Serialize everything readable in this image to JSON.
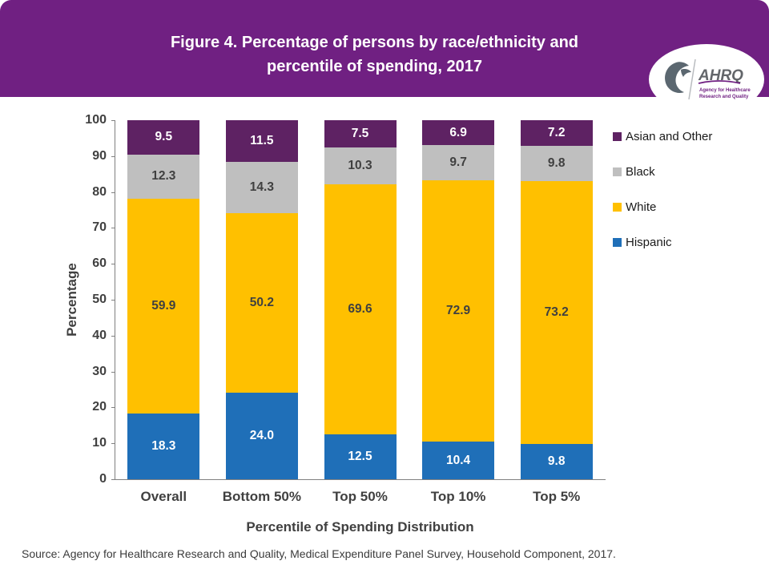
{
  "header": {
    "title_line1": "Figure 4. Percentage of persons by race/ethnicity and",
    "title_line2": "percentile of spending, 2017"
  },
  "logo": {
    "acronym": "AHRQ",
    "tagline_line1": "Agency for Healthcare",
    "tagline_line2": "Research and Quality"
  },
  "chart_data": {
    "type": "bar",
    "stacked": true,
    "title": "Figure 4. Percentage of persons by race/ethnicity and percentile of spending, 2017",
    "categories": [
      "Overall",
      "Bottom 50%",
      "Top 50%",
      "Top 10%",
      "Top 5%"
    ],
    "series": [
      {
        "name": "Hispanic",
        "color": "#1F6FB8",
        "label_color": "#FFFFFF",
        "values": [
          18.3,
          24.0,
          12.5,
          10.4,
          9.8
        ]
      },
      {
        "name": "White",
        "color": "#FFC000",
        "label_color": "#404040",
        "values": [
          59.9,
          50.2,
          69.6,
          72.9,
          73.2
        ]
      },
      {
        "name": "Black",
        "color": "#BFBFBF",
        "label_color": "#404040",
        "values": [
          12.3,
          14.3,
          10.3,
          9.7,
          9.8
        ]
      },
      {
        "name": "Asian and Other",
        "color": "#5E2263",
        "label_color": "#FFFFFF",
        "values": [
          9.5,
          11.5,
          7.5,
          6.9,
          7.2
        ]
      }
    ],
    "legend_order": [
      "Asian and Other",
      "Black",
      "White",
      "Hispanic"
    ],
    "legend_position": "right",
    "xlabel": "Percentile of Spending Distribution",
    "ylabel": "Percentage",
    "ylim": [
      0,
      100
    ],
    "yticks": [
      0,
      10,
      20,
      30,
      40,
      50,
      60,
      70,
      80,
      90,
      100
    ],
    "grid": false
  },
  "source": "Source: Agency for Healthcare Research and Quality, Medical Expenditure Panel Survey, Household Component, 2017.",
  "colors": {
    "header_background": "#702082",
    "axis": "#808080",
    "text": "#404040"
  }
}
